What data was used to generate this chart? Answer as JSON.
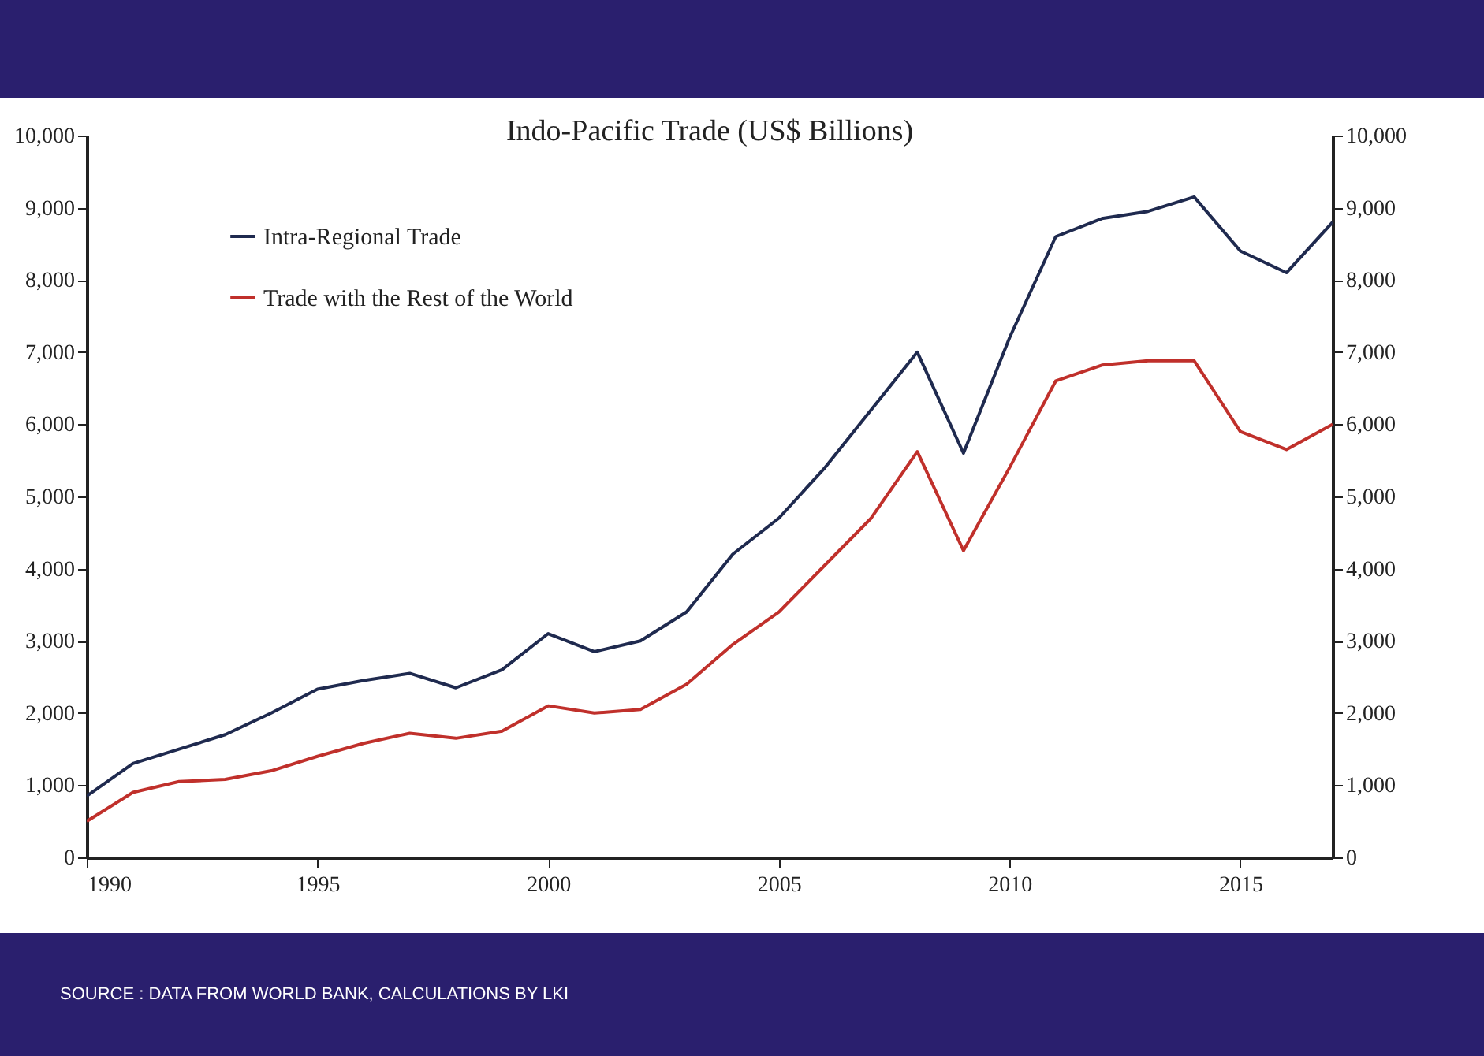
{
  "chart_data": {
    "type": "line",
    "title": "Indo-Pacific Trade (US$ Billions)",
    "x": [
      1990,
      1991,
      1992,
      1993,
      1994,
      1995,
      1996,
      1997,
      1998,
      1999,
      2000,
      2001,
      2002,
      2003,
      2004,
      2005,
      2006,
      2007,
      2008,
      2009,
      2010,
      2011,
      2012,
      2013,
      2014,
      2015,
      2016,
      2017
    ],
    "series": [
      {
        "name": "Intra-Regional Trade",
        "color": "#1f2a4f",
        "values": [
          850,
          1300,
          1500,
          1700,
          2000,
          2330,
          2450,
          2550,
          2350,
          2600,
          3100,
          2850,
          3000,
          3400,
          4200,
          4700,
          5400,
          6200,
          7000,
          5600,
          7200,
          8600,
          8850,
          8950,
          9150,
          8400,
          8100,
          8800
        ]
      },
      {
        "name": "Trade with the Rest of the World",
        "color": "#c0302b",
        "values": [
          500,
          900,
          1050,
          1080,
          1200,
          1400,
          1580,
          1720,
          1650,
          1750,
          2100,
          2000,
          2050,
          2400,
          2950,
          3400,
          4050,
          4700,
          5620,
          4250,
          5400,
          6600,
          6820,
          6880,
          6880,
          5900,
          5650,
          6000
        ]
      }
    ],
    "xlim": [
      1990,
      2017
    ],
    "xticks": [
      1990,
      1995,
      2000,
      2005,
      2010,
      2015
    ],
    "ylim": [
      0,
      10000
    ],
    "yticks": [
      0,
      {
        "value": 1000,
        "label": "1,000"
      },
      {
        "value": 2000,
        "label": "2,000"
      },
      {
        "value": 3000,
        "label": "3,000"
      },
      {
        "value": 4000,
        "label": "4,000"
      },
      {
        "value": 5000,
        "label": "5,000"
      },
      {
        "value": 6000,
        "label": "6,000"
      },
      {
        "value": 7000,
        "label": "7,000"
      },
      {
        "value": 8000,
        "label": "8,000"
      },
      {
        "value": 9000,
        "label": "9,000"
      },
      {
        "value": 10000,
        "label": "10,000"
      }
    ],
    "y2lim": [
      0,
      10000
    ],
    "y2ticks": [
      0,
      {
        "value": 1000,
        "label": "1,000"
      },
      {
        "value": 2000,
        "label": "2,000"
      },
      {
        "value": 3000,
        "label": "3,000"
      },
      {
        "value": 4000,
        "label": "4,000"
      },
      {
        "value": 5000,
        "label": "5,000"
      },
      {
        "value": 6000,
        "label": "6,000"
      },
      {
        "value": 7000,
        "label": "7,000"
      },
      {
        "value": 8000,
        "label": "8,000"
      },
      {
        "value": 9000,
        "label": "9,000"
      },
      {
        "value": 10000,
        "label": "10,000"
      }
    ],
    "legend": "top left",
    "grid": false,
    "marker": "none",
    "line_style": "solid",
    "annotations": [
      "SOURCE : DATA FROM WORLD BANK, CALCULATIONS BY LKI"
    ]
  }
}
